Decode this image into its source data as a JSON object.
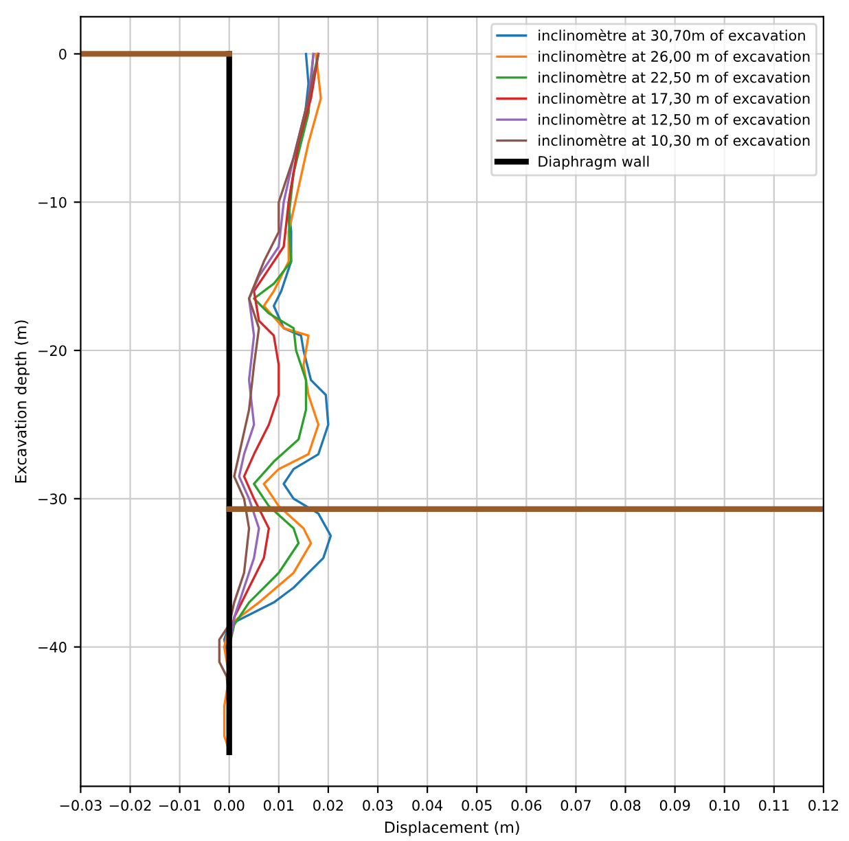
{
  "chart_data": {
    "type": "line",
    "xlabel": "Displacement (m)",
    "ylabel": "Excavation depth (m)",
    "xlim": [
      -0.03,
      0.12
    ],
    "xticks": [
      {
        "value": -0.03,
        "label": "−0.03"
      },
      {
        "value": -0.02,
        "label": "−0.02"
      },
      {
        "value": -0.01,
        "label": "−0.01"
      },
      {
        "value": 0,
        "label": "0.00"
      },
      {
        "value": 0.01,
        "label": "0.01"
      },
      {
        "value": 0.02,
        "label": "0.02"
      },
      {
        "value": 0.03,
        "label": "0.03"
      },
      {
        "value": 0.04,
        "label": "0.04"
      },
      {
        "value": 0.05,
        "label": "0.05"
      },
      {
        "value": 0.06,
        "label": "0.06"
      },
      {
        "value": 0.07,
        "label": "0.07"
      },
      {
        "value": 0.08,
        "label": "0.08"
      },
      {
        "value": 0.09,
        "label": "0.09"
      },
      {
        "value": 0.1,
        "label": "0.10"
      },
      {
        "value": 0.11,
        "label": "0.11"
      },
      {
        "value": 0.12,
        "label": "0.12"
      }
    ],
    "ylim": [
      -49.4,
      2.5
    ],
    "yticks": [
      {
        "value": -40,
        "label": "−40"
      },
      {
        "value": -30,
        "label": "−30"
      },
      {
        "value": -20,
        "label": "−20"
      },
      {
        "value": -10,
        "label": "−10"
      },
      0
    ],
    "grid": true,
    "legend": "top right",
    "series": [
      {
        "name": "inclinomètre at 30,70m of excavation",
        "color": "#1f77b4",
        "x": [
          0.0155,
          0.016,
          0.015,
          0.013,
          0.012,
          0.0125,
          0.0125,
          0.0105,
          0.009,
          0.011,
          0.0145,
          0.015,
          0.0165,
          0.0195,
          0.02,
          0.018,
          0.013,
          0.011,
          0.013,
          0.018,
          0.0205,
          0.019,
          0.013,
          0.009,
          0.003,
          0.0,
          -0.001,
          0.0
        ],
        "values": [
          0,
          -2,
          -5,
          -8,
          -10,
          -12,
          -14,
          -16,
          -17,
          -18.5,
          -19,
          -20,
          -22,
          -23,
          -25,
          -27,
          -28,
          -29,
          -30,
          -31,
          -32.5,
          -34,
          -36,
          -37,
          -38,
          -38.5,
          -39.5,
          -41
        ]
      },
      {
        "name": "inclinomètre at 26,00 m of excavation",
        "color": "#ff7f0e",
        "x": [
          0.0175,
          0.0185,
          0.016,
          0.014,
          0.012,
          0.012,
          0.009,
          0.007,
          0.011,
          0.016,
          0.015,
          0.016,
          0.018,
          0.016,
          0.01,
          0.007,
          0.01,
          0.015,
          0.0165,
          0.013,
          0.006,
          0.0,
          -0.001,
          0.0,
          -0.001,
          -0.001,
          0.0
        ],
        "values": [
          0,
          -3,
          -6,
          -9,
          -12,
          -14,
          -16,
          -17,
          -18.5,
          -19,
          -21,
          -23,
          -25,
          -27,
          -28,
          -29,
          -30.5,
          -32,
          -33,
          -35,
          -37,
          -38.5,
          -40,
          -42,
          -44,
          -46,
          -47
        ]
      },
      {
        "name": "inclinomètre at 22,50 m of excavation",
        "color": "#2ca02c",
        "x": [
          0.017,
          0.016,
          0.013,
          0.012,
          0.0125,
          0.009,
          0.005,
          0.008,
          0.013,
          0.0135,
          0.0155,
          0.0155,
          0.014,
          0.009,
          0.005,
          0.008,
          0.013,
          0.014,
          0.01,
          0.004,
          0.001,
          0.0
        ],
        "values": [
          0,
          -4,
          -8,
          -11,
          -14,
          -15.5,
          -16.5,
          -17.5,
          -18.5,
          -20,
          -22,
          -24,
          -26,
          -27.5,
          -29,
          -30.5,
          -32,
          -33,
          -35,
          -37,
          -38.5,
          -40
        ]
      },
      {
        "name": "inclinomètre at 17,30 m of excavation",
        "color": "#d62728",
        "x": [
          0.018,
          0.0165,
          0.014,
          0.012,
          0.011,
          0.008,
          0.005,
          0.006,
          0.009,
          0.01,
          0.01,
          0.008,
          0.005,
          0.003,
          0.005,
          0.008,
          0.007,
          0.004,
          0.001,
          0.0
        ],
        "values": [
          0,
          -3,
          -6,
          -10,
          -13,
          -14.5,
          -16,
          -18,
          -19,
          -21,
          -23,
          -25,
          -27,
          -28.5,
          -30,
          -32,
          -34,
          -36,
          -38,
          -40
        ]
      },
      {
        "name": "inclinomètre at 12,50 m of excavation",
        "color": "#9467bd",
        "x": [
          0.017,
          0.016,
          0.013,
          0.011,
          0.01,
          0.006,
          0.004,
          0.005,
          0.004,
          0.005,
          0.003,
          0.002,
          0.004,
          0.006,
          0.005,
          0.003,
          0.001,
          0.0
        ],
        "values": [
          0,
          -3,
          -7,
          -10,
          -13,
          -15,
          -16.5,
          -19,
          -22,
          -25,
          -27,
          -28.5,
          -30,
          -32,
          -34,
          -36,
          -38,
          -40
        ]
      },
      {
        "name": "inclinomètre at 10,30 m of excavation",
        "color": "#8c564b",
        "x": [
          0.018,
          0.016,
          0.013,
          0.01,
          0.01,
          0.007,
          0.004,
          0.006,
          0.005,
          0.004,
          0.002,
          0.001,
          0.003,
          0.004,
          0.003,
          0.001,
          0.0,
          -0.002,
          -0.002,
          -0.0005,
          0.0
        ],
        "values": [
          0,
          -3,
          -7,
          -10,
          -12,
          -14,
          -16.5,
          -18.5,
          -21,
          -24,
          -27,
          -28.5,
          -30,
          -32,
          -35,
          -37,
          -38.5,
          -39.5,
          -41,
          -42,
          -44
        ]
      },
      {
        "name": "Diaphragm wall",
        "color": "#000000",
        "x": [
          0,
          0
        ],
        "values": [
          0,
          -47.1
        ]
      },
      {
        "color": "#9b5a2a",
        "x": [
          -0.03,
          0
        ],
        "values": [
          0,
          0
        ]
      },
      {
        "color": "#9b5a2a",
        "x": [
          0,
          0.12
        ],
        "values": [
          -30.7,
          -30.7
        ]
      }
    ]
  }
}
